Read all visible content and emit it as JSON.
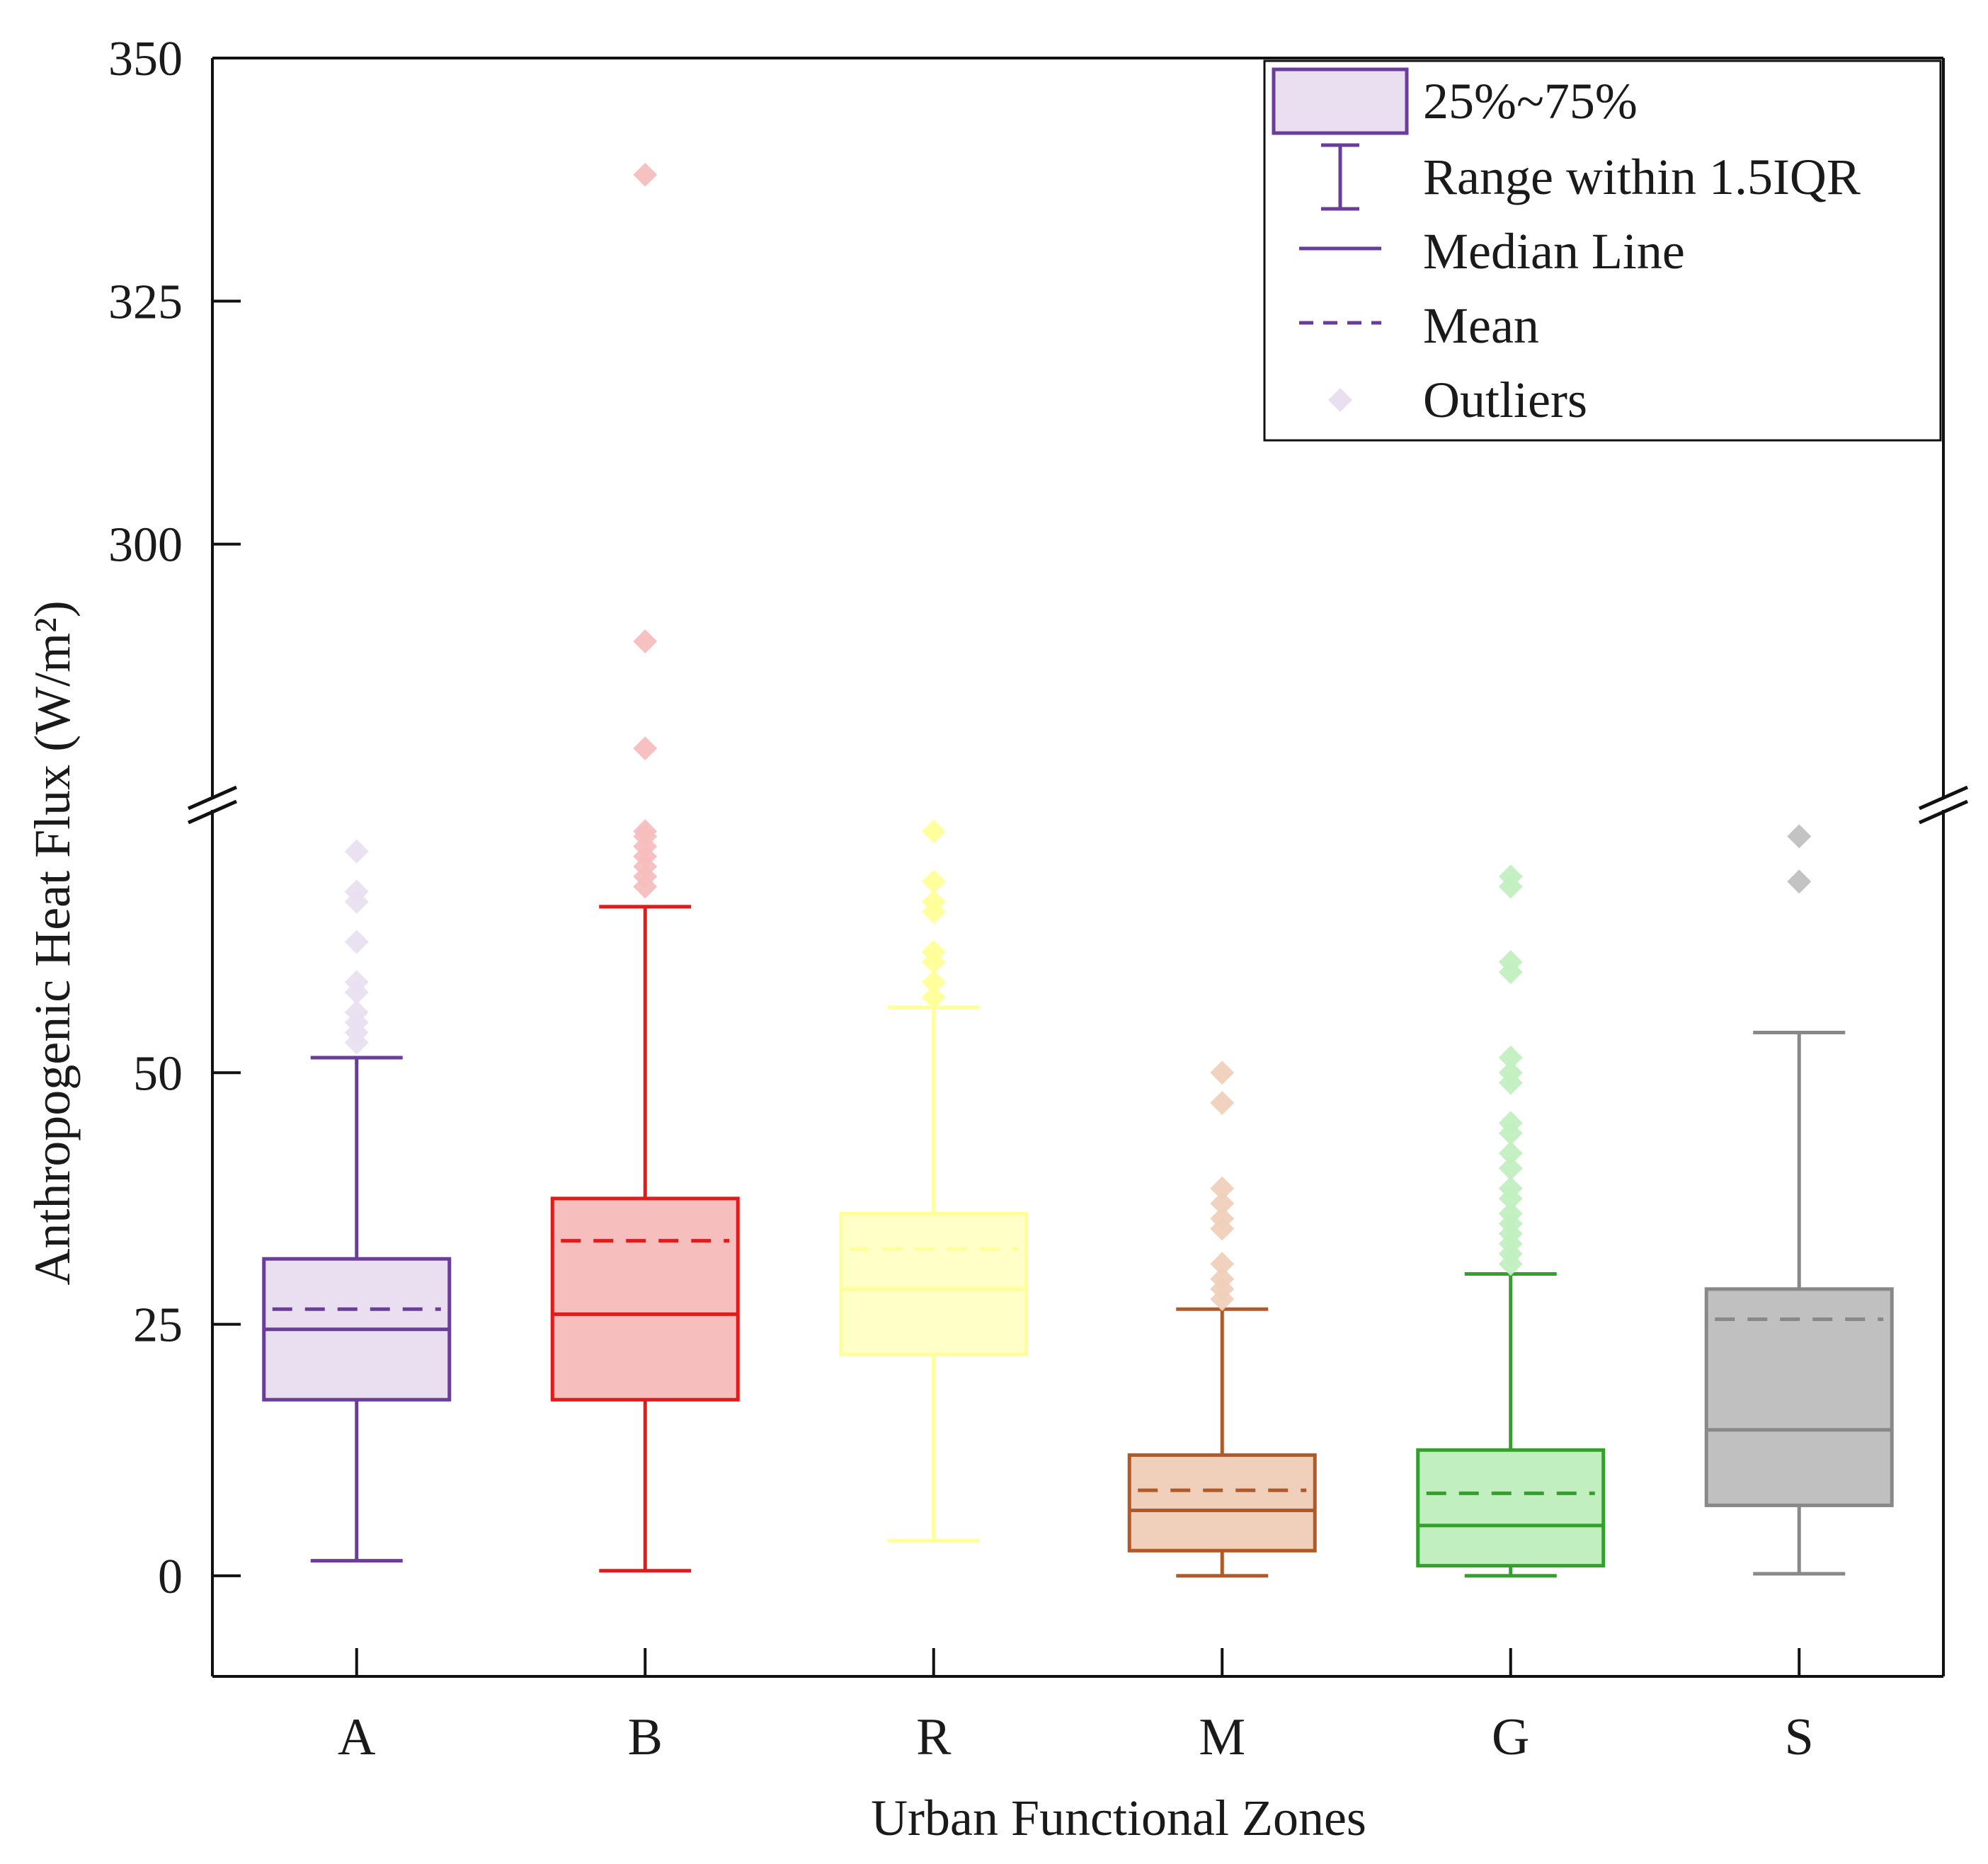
{
  "chart_data": {
    "type": "box",
    "xlabel": "Urban Functional Zones",
    "ylabel": "Anthropogenic Heat Flux (W/m²)",
    "y_axis_break": true,
    "ylim_lower_segment": [
      -10,
      75
    ],
    "ylim_upper_segment": [
      275,
      350
    ],
    "yticks_lower": [
      "0",
      "25",
      "50"
    ],
    "yticks_upper": [
      "300",
      "325",
      "350"
    ],
    "categories": [
      "A",
      "B",
      "R",
      "M",
      "G",
      "S"
    ],
    "series": [
      {
        "name": "A",
        "color": "#6a3d9a",
        "fill": "#e9dff0",
        "q1": 17.5,
        "median": 24.5,
        "q3": 31.5,
        "mean": 26.5,
        "whisker_low": 1.5,
        "whisker_high": 51.5,
        "outliers": [
          53,
          54,
          55,
          56,
          58,
          59,
          63,
          67,
          68,
          72
        ]
      },
      {
        "name": "B",
        "color": "#e31a1c",
        "fill": "#f7bebe",
        "q1": 17.5,
        "median": 26.0,
        "q3": 37.5,
        "mean": 33.3,
        "whisker_low": 0.5,
        "whisker_high": 66.5,
        "outliers": [
          68.5,
          69.5,
          70.5,
          71.5,
          72.5,
          73.5,
          74,
          279,
          290,
          338
        ]
      },
      {
        "name": "R",
        "color": "#ffff99",
        "fill": "#ffffc8",
        "q1": 22.0,
        "median": 28.5,
        "q3": 36.0,
        "mean": 32.5,
        "whisker_low": 3.5,
        "whisker_high": 56.5,
        "outliers": [
          57.5,
          59,
          61,
          62,
          66,
          67,
          69,
          74
        ]
      },
      {
        "name": "M",
        "color": "#b15928",
        "fill": "#f0d0bb",
        "q1": 2.5,
        "median": 6.5,
        "q3": 12.0,
        "mean": 8.5,
        "whisker_low": 0,
        "whisker_high": 26.5,
        "outliers": [
          27.5,
          28.5,
          29.5,
          31,
          34.5,
          35.5,
          37,
          38.5,
          47,
          50
        ]
      },
      {
        "name": "G",
        "color": "#33a02c",
        "fill": "#c2efc0",
        "q1": 1.0,
        "median": 5.0,
        "q3": 12.5,
        "mean": 8.2,
        "whisker_low": 0,
        "whisker_high": 30.0,
        "outliers": [
          31,
          32,
          33,
          34,
          35,
          36,
          37.5,
          38.5,
          40.5,
          42,
          44,
          45,
          49,
          50,
          51.5,
          60,
          61,
          68.5,
          69.5
        ]
      },
      {
        "name": "S",
        "color": "#888888",
        "fill": "#c0c0c0",
        "q1": 7.0,
        "median": 14.5,
        "q3": 28.5,
        "mean": 25.5,
        "whisker_low": 0.2,
        "whisker_high": 54.0,
        "outliers": [
          69,
          73.5
        ]
      }
    ],
    "legend": {
      "placement": "top-right",
      "items": [
        {
          "key": "box",
          "label": "25%~75%"
        },
        {
          "key": "whisker",
          "label": "Range within 1.5IQR"
        },
        {
          "key": "median",
          "label": "Median Line"
        },
        {
          "key": "mean",
          "label": "Mean"
        },
        {
          "key": "outlier",
          "label": "Outliers"
        }
      ],
      "color": "#6a3d9a",
      "fill": "#e9dff0"
    }
  }
}
